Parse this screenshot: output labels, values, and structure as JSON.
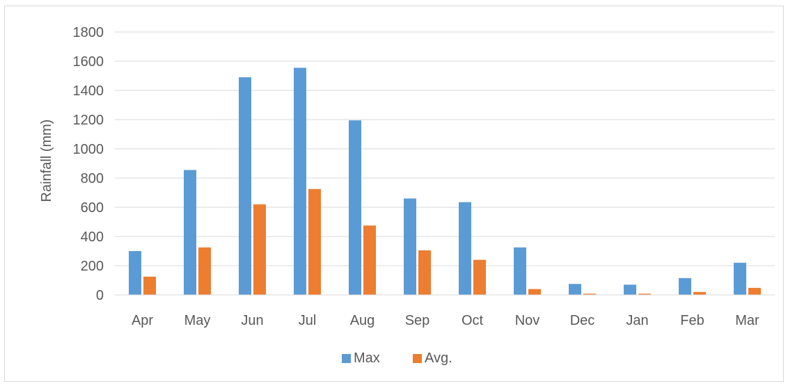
{
  "chart_data": {
    "type": "bar",
    "title": "",
    "xlabel": "",
    "ylabel": "Rainfall (mm)",
    "ylim": [
      0,
      1800
    ],
    "yticks": [
      0,
      200,
      400,
      600,
      800,
      1000,
      1200,
      1400,
      1600,
      1800
    ],
    "grid": true,
    "legend_position": "bottom",
    "categories": [
      "Apr",
      "May",
      "Jun",
      "Jul",
      "Aug",
      "Sep",
      "Oct",
      "Nov",
      "Dec",
      "Jan",
      "Feb",
      "Mar"
    ],
    "series": [
      {
        "name": "Max",
        "color": "#5b9bd5",
        "values": [
          300,
          855,
          1490,
          1555,
          1195,
          660,
          635,
          325,
          75,
          70,
          115,
          220
        ]
      },
      {
        "name": "Avg.",
        "color": "#ed7d31",
        "values": [
          125,
          325,
          620,
          725,
          475,
          305,
          240,
          40,
          8,
          8,
          20,
          48
        ]
      }
    ]
  }
}
